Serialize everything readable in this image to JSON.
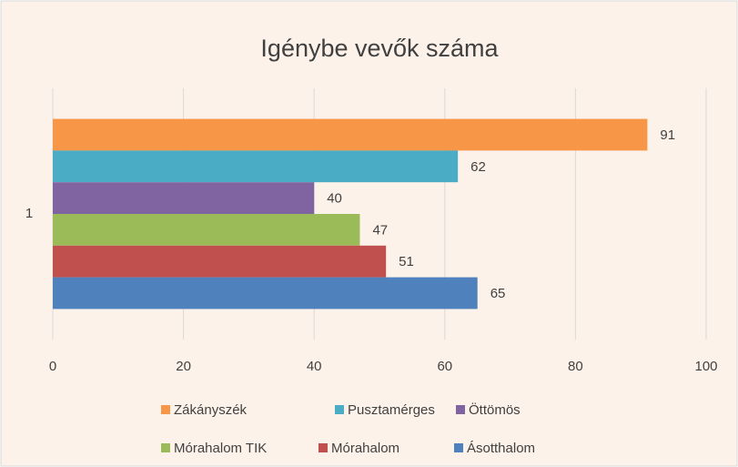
{
  "chart_data": {
    "type": "bar",
    "orientation": "horizontal",
    "title": "Igénybe vevők száma",
    "categories": [
      "1"
    ],
    "series": [
      {
        "name": "Zákányszék",
        "color": "#f79646",
        "values": [
          91
        ]
      },
      {
        "name": "Pusztamérges",
        "color": "#4bacc6",
        "values": [
          62
        ]
      },
      {
        "name": "Öttömös",
        "color": "#8064a2",
        "values": [
          40
        ]
      },
      {
        "name": "Mórahalom TIK",
        "color": "#9bbb59",
        "values": [
          47
        ]
      },
      {
        "name": "Mórahalom",
        "color": "#c0504d",
        "values": [
          51
        ]
      },
      {
        "name": "Ásotthalom",
        "color": "#4f81bd",
        "values": [
          65
        ]
      }
    ],
    "xlim": [
      0,
      100
    ],
    "xticks": [
      0,
      20,
      40,
      60,
      80,
      100
    ],
    "grid": true,
    "legend": "bottom"
  }
}
